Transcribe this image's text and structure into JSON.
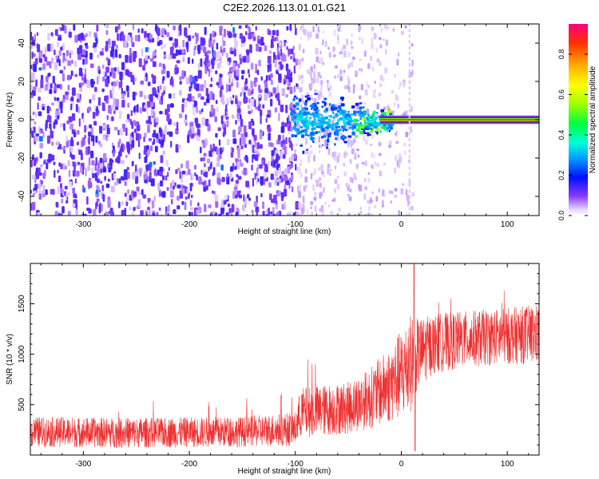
{
  "title": "C2E2.2026.113.01.01.G21",
  "colors": {
    "snr_line": "#ee3030",
    "axis": "#000000",
    "background": "#ffffff"
  },
  "chart_data": [
    {
      "type": "heatmap",
      "name": "spectrogram",
      "xlabel": "Height of straight line (km)",
      "ylabel": "Frequency (Hz)",
      "xlim": [
        -350,
        130
      ],
      "ylim": [
        -50,
        50
      ],
      "xticks": [
        -300,
        -200,
        -100,
        0,
        100
      ],
      "yticks": [
        -40,
        -20,
        0,
        20,
        40
      ],
      "colorbar": {
        "label": "Normalized spectral amplitude",
        "range": [
          0,
          0.95
        ],
        "ticks": [
          0.0,
          0.2,
          0.4,
          0.6,
          0.8
        ]
      },
      "regions": [
        {
          "x_range": [
            -350,
            -100
          ],
          "description": "dense noise",
          "typical_amplitude": 0.1
        },
        {
          "x_range": [
            -100,
            10
          ],
          "description": "sparse noise",
          "typical_amplitude": 0.03
        },
        {
          "x_range": [
            -100,
            -20
          ],
          "description": "signal onset",
          "frequency_center": 0,
          "frequency_spread": 8,
          "typical_amplitude": 0.3
        },
        {
          "x_range": [
            -20,
            130
          ],
          "description": "steady carrier",
          "frequency_center": 0,
          "frequency_spread": 1,
          "typical_amplitude": 0.95
        }
      ]
    },
    {
      "type": "line",
      "name": "snr",
      "xlabel": "Height of straight line (km)",
      "ylabel": "SNR (10 * v/v)",
      "xlim": [
        -350,
        130
      ],
      "ylim": [
        0,
        1900
      ],
      "xticks": [
        -300,
        -200,
        -100,
        0,
        100
      ],
      "yticks": [
        500,
        1000,
        1500
      ],
      "envelope": [
        {
          "x": -350,
          "mean": 230,
          "spread": 150
        },
        {
          "x": -250,
          "mean": 220,
          "spread": 150
        },
        {
          "x": -150,
          "mean": 230,
          "spread": 150
        },
        {
          "x": -100,
          "mean": 260,
          "spread": 170
        },
        {
          "x": -95,
          "mean": 420,
          "spread": 250
        },
        {
          "x": -50,
          "mean": 470,
          "spread": 260
        },
        {
          "x": -30,
          "mean": 560,
          "spread": 300
        },
        {
          "x": -10,
          "mean": 700,
          "spread": 380
        },
        {
          "x": 0,
          "mean": 800,
          "spread": 450
        },
        {
          "x": 8,
          "mean": 900,
          "spread": 500
        },
        {
          "x": 15,
          "mean": 1000,
          "spread": 350
        },
        {
          "x": 30,
          "mean": 1100,
          "spread": 300
        },
        {
          "x": 60,
          "mean": 1150,
          "spread": 280
        },
        {
          "x": 100,
          "mean": 1180,
          "spread": 280
        },
        {
          "x": 130,
          "mean": 1200,
          "spread": 300
        }
      ],
      "peaks": [
        {
          "x": 12,
          "y": 1900
        },
        {
          "x": 13,
          "y": 40
        }
      ]
    }
  ]
}
